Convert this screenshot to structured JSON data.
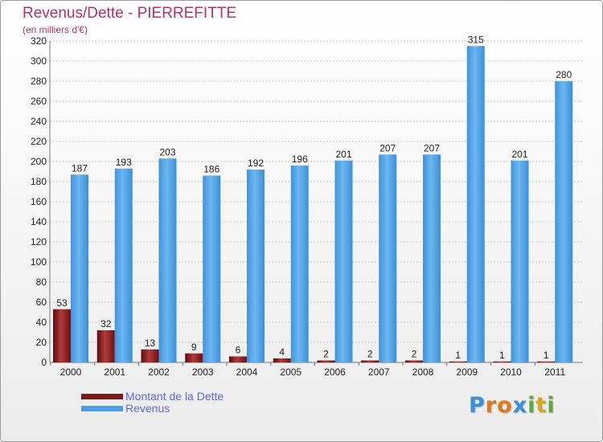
{
  "title": "Revenus/Dette - PIERREFITTE",
  "subtitle": "(en milliers d'€)",
  "logo": {
    "text": "Proxiti",
    "letters": [
      "P",
      "r",
      "o",
      "x",
      "i",
      "t",
      "i"
    ],
    "colors": [
      "#3a8fd8",
      "#e07b1a",
      "#e07b1a",
      "#3a8fd8",
      "#5cae3a",
      "#d9a61a",
      "#5cae3a"
    ]
  },
  "colors": {
    "dette": "#7a1a1a",
    "revenus": "#4d9ee3",
    "axis_text": "#222222",
    "grid": "#c8c8c8"
  },
  "legend": [
    {
      "label": "Montant de la Dette",
      "color": "#7a1a1a"
    },
    {
      "label": "Revenus",
      "color": "#4d9ee3"
    }
  ],
  "chart_data": {
    "type": "bar",
    "title": "Revenus/Dette - PIERREFITTE",
    "subtitle": "(en milliers d'€)",
    "categories": [
      "2000",
      "2001",
      "2002",
      "2003",
      "2004",
      "2005",
      "2006",
      "2007",
      "2008",
      "2009",
      "2010",
      "2011"
    ],
    "series": [
      {
        "name": "Montant de la Dette",
        "values": [
          53,
          32,
          13,
          9,
          6,
          4,
          2,
          2,
          2,
          1,
          1,
          1
        ]
      },
      {
        "name": "Revenus",
        "values": [
          187,
          193,
          203,
          186,
          192,
          196,
          201,
          207,
          207,
          315,
          201,
          280
        ]
      }
    ],
    "ylim": [
      0,
      320
    ],
    "yticks": [
      0,
      20,
      40,
      60,
      80,
      100,
      120,
      140,
      160,
      180,
      200,
      220,
      240,
      260,
      280,
      300,
      320
    ],
    "grid": true,
    "legend_position": "bottom-left"
  }
}
